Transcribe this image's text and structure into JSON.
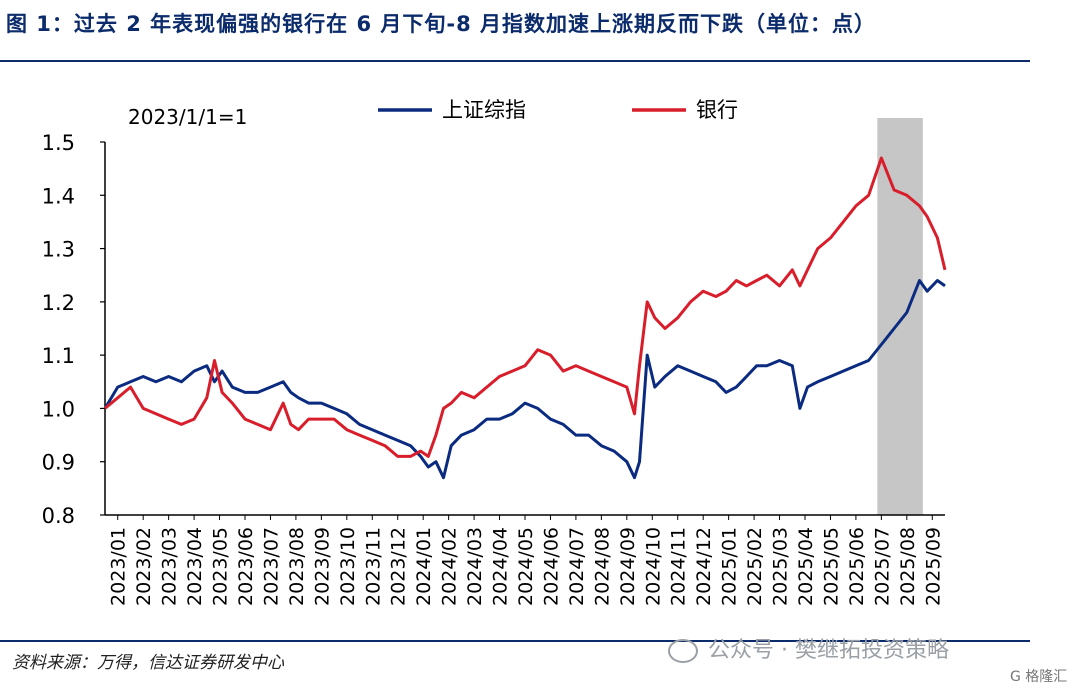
{
  "title": "图 1：过去 2 年表现偏强的银行在 6 月下旬-8 月指数加速上涨期反而下跌（单位：点）",
  "source": "资料来源：万得，信达证券研发中心",
  "watermark": "公众号 · 樊继拓投资策略",
  "watermark2": "G 格隆汇",
  "chart_data": {
    "type": "line",
    "annotation": "2023/1/1=1",
    "ylim": [
      0.8,
      1.5
    ],
    "yticks": [
      "0.8",
      "0.9",
      "1.0",
      "1.1",
      "1.2",
      "1.3",
      "1.4",
      "1.5"
    ],
    "categories": [
      "2023/01",
      "2023/02",
      "2023/03",
      "2023/04",
      "2023/05",
      "2023/06",
      "2023/07",
      "2023/08",
      "2023/09",
      "2023/10",
      "2023/11",
      "2023/12",
      "2024/01",
      "2024/02",
      "2024/03",
      "2024/04",
      "2024/05",
      "2024/06",
      "2024/07",
      "2024/08",
      "2024/09",
      "2024/10",
      "2024/11",
      "2024/12",
      "2025/01",
      "2025/02",
      "2025/03",
      "2025/04",
      "2025/05",
      "2025/06",
      "2025/07",
      "2025/08",
      "2025/09"
    ],
    "shaded_range": [
      "2025/07",
      "2025/08"
    ],
    "series": [
      {
        "name": "上证综指",
        "color": "#0b2b80",
        "points": [
          [
            0,
            1.0
          ],
          [
            0.5,
            1.04
          ],
          [
            1,
            1.05
          ],
          [
            1.5,
            1.06
          ],
          [
            2,
            1.05
          ],
          [
            2.5,
            1.06
          ],
          [
            3,
            1.05
          ],
          [
            3.5,
            1.07
          ],
          [
            4,
            1.08
          ],
          [
            4.3,
            1.05
          ],
          [
            4.6,
            1.07
          ],
          [
            5,
            1.04
          ],
          [
            5.5,
            1.03
          ],
          [
            6,
            1.03
          ],
          [
            6.5,
            1.04
          ],
          [
            7,
            1.05
          ],
          [
            7.3,
            1.03
          ],
          [
            7.6,
            1.02
          ],
          [
            8,
            1.01
          ],
          [
            8.5,
            1.01
          ],
          [
            9,
            1.0
          ],
          [
            9.5,
            0.99
          ],
          [
            10,
            0.97
          ],
          [
            10.5,
            0.96
          ],
          [
            11,
            0.95
          ],
          [
            11.5,
            0.94
          ],
          [
            12,
            0.93
          ],
          [
            12.4,
            0.91
          ],
          [
            12.7,
            0.89
          ],
          [
            13,
            0.9
          ],
          [
            13.3,
            0.87
          ],
          [
            13.6,
            0.93
          ],
          [
            14,
            0.95
          ],
          [
            14.5,
            0.96
          ],
          [
            15,
            0.98
          ],
          [
            15.5,
            0.98
          ],
          [
            16,
            0.99
          ],
          [
            16.5,
            1.01
          ],
          [
            17,
            1.0
          ],
          [
            17.5,
            0.98
          ],
          [
            18,
            0.97
          ],
          [
            18.5,
            0.95
          ],
          [
            19,
            0.95
          ],
          [
            19.5,
            0.93
          ],
          [
            20,
            0.92
          ],
          [
            20.5,
            0.9
          ],
          [
            20.8,
            0.87
          ],
          [
            21,
            0.9
          ],
          [
            21.3,
            1.1
          ],
          [
            21.6,
            1.04
          ],
          [
            22,
            1.06
          ],
          [
            22.5,
            1.08
          ],
          [
            23,
            1.07
          ],
          [
            23.5,
            1.06
          ],
          [
            24,
            1.05
          ],
          [
            24.4,
            1.03
          ],
          [
            24.8,
            1.04
          ],
          [
            25.2,
            1.06
          ],
          [
            25.6,
            1.08
          ],
          [
            26,
            1.08
          ],
          [
            26.5,
            1.09
          ],
          [
            27,
            1.08
          ],
          [
            27.3,
            1.0
          ],
          [
            27.6,
            1.04
          ],
          [
            28,
            1.05
          ],
          [
            28.5,
            1.06
          ],
          [
            29,
            1.07
          ],
          [
            29.5,
            1.08
          ],
          [
            30,
            1.09
          ],
          [
            30.5,
            1.12
          ],
          [
            31,
            1.15
          ],
          [
            31.5,
            1.18
          ],
          [
            32,
            1.24
          ],
          [
            32.3,
            1.22
          ],
          [
            32.7,
            1.24
          ],
          [
            33,
            1.23
          ]
        ]
      },
      {
        "name": "银行",
        "color": "#d81e2b",
        "points": [
          [
            0,
            1.0
          ],
          [
            0.5,
            1.02
          ],
          [
            1,
            1.04
          ],
          [
            1.5,
            1.0
          ],
          [
            2,
            0.99
          ],
          [
            2.5,
            0.98
          ],
          [
            3,
            0.97
          ],
          [
            3.5,
            0.98
          ],
          [
            4,
            1.02
          ],
          [
            4.3,
            1.09
          ],
          [
            4.6,
            1.03
          ],
          [
            5,
            1.01
          ],
          [
            5.5,
            0.98
          ],
          [
            6,
            0.97
          ],
          [
            6.5,
            0.96
          ],
          [
            7,
            1.01
          ],
          [
            7.3,
            0.97
          ],
          [
            7.6,
            0.96
          ],
          [
            8,
            0.98
          ],
          [
            8.5,
            0.98
          ],
          [
            9,
            0.98
          ],
          [
            9.5,
            0.96
          ],
          [
            10,
            0.95
          ],
          [
            10.5,
            0.94
          ],
          [
            11,
            0.93
          ],
          [
            11.5,
            0.91
          ],
          [
            12,
            0.91
          ],
          [
            12.4,
            0.92
          ],
          [
            12.7,
            0.91
          ],
          [
            13,
            0.95
          ],
          [
            13.3,
            1.0
          ],
          [
            13.6,
            1.01
          ],
          [
            14,
            1.03
          ],
          [
            14.5,
            1.02
          ],
          [
            15,
            1.04
          ],
          [
            15.5,
            1.06
          ],
          [
            16,
            1.07
          ],
          [
            16.5,
            1.08
          ],
          [
            17,
            1.11
          ],
          [
            17.5,
            1.1
          ],
          [
            18,
            1.07
          ],
          [
            18.5,
            1.08
          ],
          [
            19,
            1.07
          ],
          [
            19.5,
            1.06
          ],
          [
            20,
            1.05
          ],
          [
            20.5,
            1.04
          ],
          [
            20.8,
            0.99
          ],
          [
            21,
            1.08
          ],
          [
            21.3,
            1.2
          ],
          [
            21.6,
            1.17
          ],
          [
            22,
            1.15
          ],
          [
            22.5,
            1.17
          ],
          [
            23,
            1.2
          ],
          [
            23.5,
            1.22
          ],
          [
            24,
            1.21
          ],
          [
            24.4,
            1.22
          ],
          [
            24.8,
            1.24
          ],
          [
            25.2,
            1.23
          ],
          [
            25.6,
            1.24
          ],
          [
            26,
            1.25
          ],
          [
            26.5,
            1.23
          ],
          [
            27,
            1.26
          ],
          [
            27.3,
            1.23
          ],
          [
            27.6,
            1.26
          ],
          [
            28,
            1.3
          ],
          [
            28.5,
            1.32
          ],
          [
            29,
            1.35
          ],
          [
            29.5,
            1.38
          ],
          [
            30,
            1.4
          ],
          [
            30.5,
            1.47
          ],
          [
            31,
            1.41
          ],
          [
            31.5,
            1.4
          ],
          [
            32,
            1.38
          ],
          [
            32.3,
            1.36
          ],
          [
            32.7,
            1.32
          ],
          [
            33,
            1.26
          ]
        ]
      }
    ]
  }
}
